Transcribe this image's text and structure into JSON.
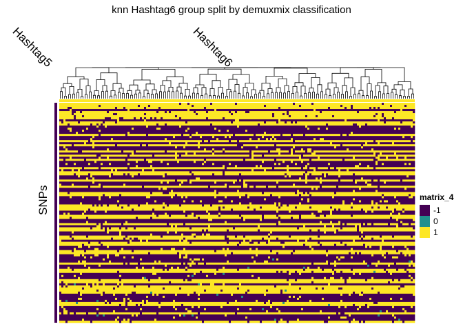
{
  "chart_data": {
    "type": "heatmap",
    "title": "knn Hashtag6 group split by demuxmix classification",
    "column_groups": [
      "Hashtag5",
      "Hashtag6"
    ],
    "ylabel": "SNPs",
    "legend": {
      "title": "matrix_4",
      "position": "right",
      "entries": [
        {
          "value": "-1",
          "color": "#440154"
        },
        {
          "value": "0",
          "color": "#21908C"
        },
        {
          "value": "1",
          "color": "#FDE725"
        }
      ]
    },
    "dendrogram": "columns",
    "value_levels": [
      -1,
      0,
      1
    ]
  }
}
